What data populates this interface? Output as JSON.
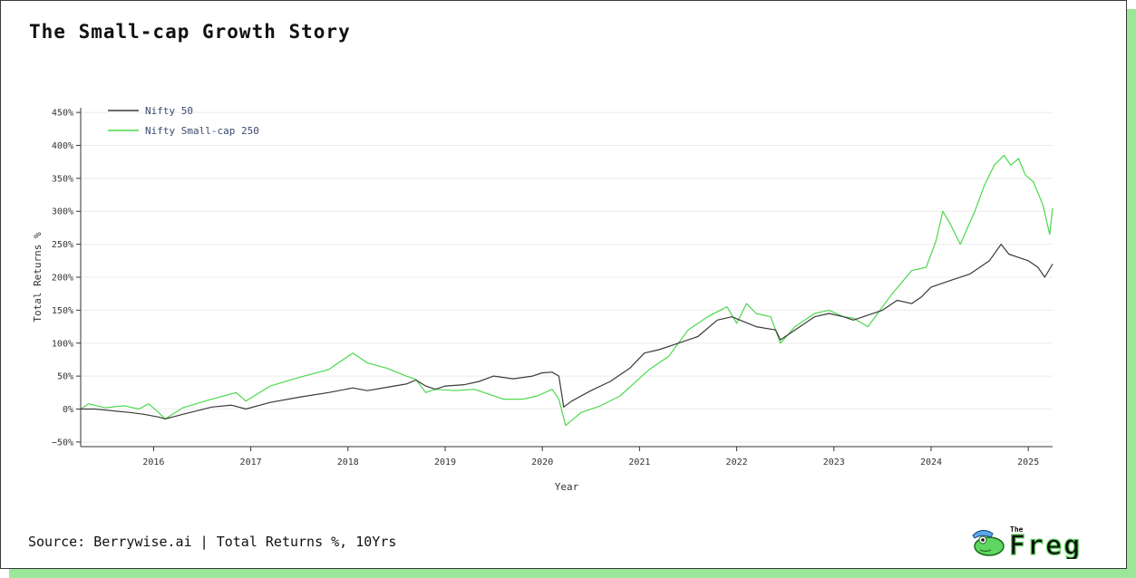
{
  "title": "The Small-cap Growth Story",
  "source": "Source: Berrywise.ai | Total Returns %, 10Yrs",
  "logo": {
    "small_text": "The",
    "big_text": "Freg"
  },
  "colors": {
    "nifty50": "#3a3a3a",
    "smallcap": "#4cd84c",
    "shadow": "#9be79a"
  },
  "chart_data": {
    "type": "line",
    "title": "The Small-cap Growth Story",
    "xlabel": "Year",
    "ylabel": "Total Returns %",
    "xlim": [
      2015.25,
      2025.25
    ],
    "ylim": [
      -57,
      457
    ],
    "yticks": [
      -50,
      0,
      50,
      100,
      150,
      200,
      250,
      300,
      350,
      400,
      450
    ],
    "ytick_labels": [
      "−50%",
      "0%",
      "50%",
      "100%",
      "150%",
      "200%",
      "250%",
      "300%",
      "350%",
      "400%",
      "450%"
    ],
    "xticks": [
      2016,
      2017,
      2018,
      2019,
      2020,
      2021,
      2022,
      2023,
      2024,
      2025
    ],
    "xtick_labels": [
      "2016",
      "2017",
      "2018",
      "2019",
      "2020",
      "2021",
      "2022",
      "2023",
      "2024",
      "2025"
    ],
    "grid": "horizontal",
    "legend_position": "top-left",
    "series": [
      {
        "name": "Nifty 50",
        "x": [
          2015.25,
          2015.4,
          2015.6,
          2015.75,
          2015.9,
          2016.05,
          2016.12,
          2016.3,
          2016.6,
          2016.8,
          2016.95,
          2017.2,
          2017.5,
          2017.8,
          2018.05,
          2018.2,
          2018.4,
          2018.6,
          2018.7,
          2018.8,
          2018.9,
          2019.0,
          2019.2,
          2019.35,
          2019.5,
          2019.7,
          2019.9,
          2020.0,
          2020.1,
          2020.17,
          2020.22,
          2020.3,
          2020.5,
          2020.7,
          2020.9,
          2021.05,
          2021.2,
          2021.4,
          2021.6,
          2021.8,
          2021.95,
          2022.2,
          2022.4,
          2022.45,
          2022.6,
          2022.8,
          2022.95,
          2023.1,
          2023.2,
          2023.5,
          2023.65,
          2023.8,
          2023.9,
          2024.0,
          2024.2,
          2024.4,
          2024.5,
          2024.6,
          2024.72,
          2024.8,
          2024.9,
          2025.0,
          2025.1,
          2025.17,
          2025.25
        ],
        "values": [
          0,
          0,
          -3,
          -5,
          -8,
          -12,
          -15,
          -8,
          3,
          6,
          0,
          10,
          18,
          25,
          32,
          28,
          33,
          38,
          44,
          35,
          30,
          35,
          37,
          42,
          50,
          46,
          50,
          55,
          56,
          50,
          3,
          12,
          28,
          42,
          62,
          85,
          90,
          100,
          110,
          135,
          140,
          125,
          120,
          105,
          120,
          140,
          145,
          140,
          135,
          150,
          165,
          160,
          170,
          185,
          195,
          205,
          215,
          225,
          250,
          235,
          230,
          225,
          215,
          200,
          220
        ]
      },
      {
        "name": "Nifty Small-cap 250",
        "x": [
          2015.25,
          2015.33,
          2015.5,
          2015.7,
          2015.85,
          2015.95,
          2016.05,
          2016.12,
          2016.3,
          2016.6,
          2016.85,
          2016.95,
          2017.2,
          2017.5,
          2017.8,
          2018.05,
          2018.2,
          2018.4,
          2018.6,
          2018.7,
          2018.8,
          2018.9,
          2019.1,
          2019.3,
          2019.6,
          2019.8,
          2019.95,
          2020.1,
          2020.17,
          2020.24,
          2020.4,
          2020.6,
          2020.8,
          2020.95,
          2021.1,
          2021.3,
          2021.5,
          2021.7,
          2021.9,
          2022.0,
          2022.1,
          2022.2,
          2022.35,
          2022.45,
          2022.6,
          2022.8,
          2022.95,
          2023.1,
          2023.2,
          2023.35,
          2023.6,
          2023.8,
          2023.95,
          2024.05,
          2024.12,
          2024.2,
          2024.3,
          2024.45,
          2024.55,
          2024.65,
          2024.75,
          2024.82,
          2024.9,
          2024.97,
          2025.05,
          2025.15,
          2025.22,
          2025.25
        ],
        "values": [
          0,
          8,
          2,
          5,
          0,
          8,
          -5,
          -15,
          2,
          15,
          25,
          12,
          35,
          48,
          60,
          85,
          70,
          62,
          50,
          45,
          25,
          30,
          28,
          30,
          15,
          15,
          20,
          30,
          15,
          -25,
          -5,
          5,
          20,
          40,
          60,
          80,
          120,
          140,
          155,
          130,
          160,
          145,
          140,
          100,
          125,
          145,
          150,
          140,
          138,
          125,
          175,
          210,
          215,
          255,
          300,
          280,
          250,
          300,
          340,
          370,
          385,
          370,
          380,
          355,
          345,
          310,
          265,
          305
        ]
      }
    ]
  }
}
